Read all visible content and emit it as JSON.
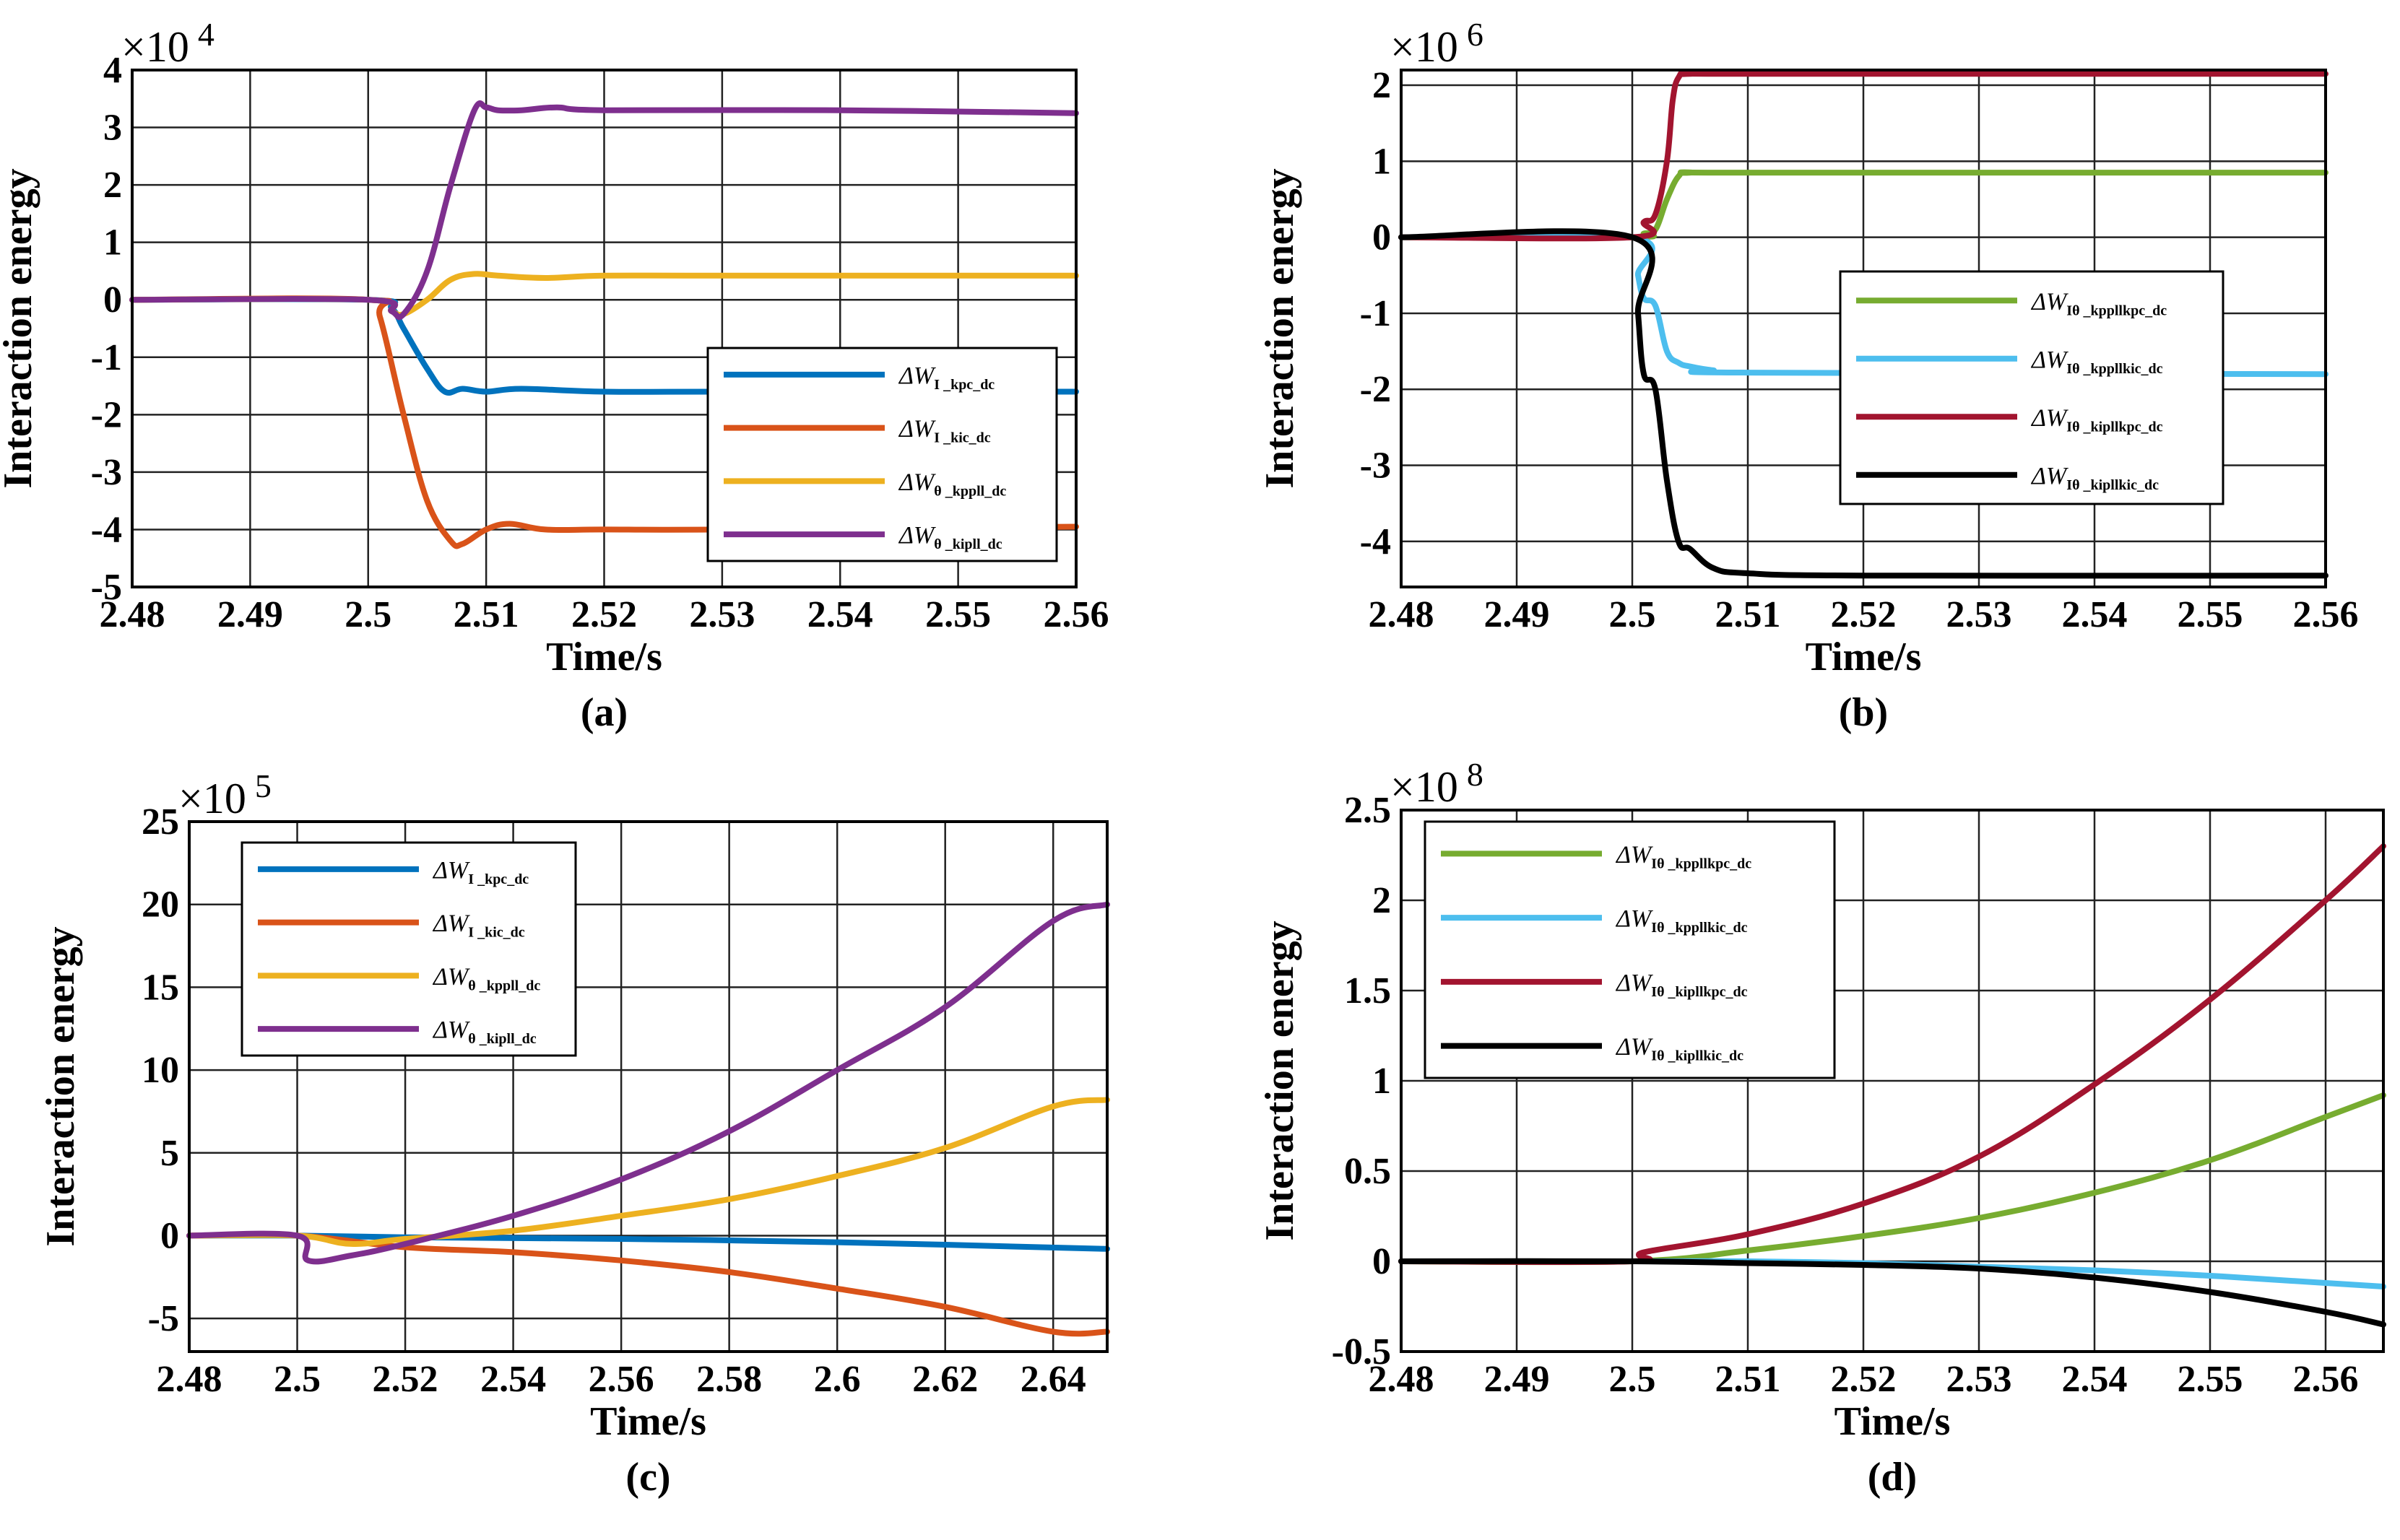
{
  "figure": {
    "y_axis_label": "Interaction energy",
    "x_axis_label": "Time/s"
  },
  "colors": {
    "blue": "#0072BD",
    "orange": "#D95319",
    "yellow": "#EDB120",
    "purple": "#7E2F8E",
    "green": "#77AC30",
    "lightblue": "#4DBEEE",
    "darkred": "#A2142F",
    "black": "#000000"
  },
  "chart_data": [
    {
      "id": "a",
      "type": "line",
      "caption": "(a)",
      "xlabel": "Time/s",
      "ylabel": "Interaction energy",
      "exponent_label": "×10",
      "exponent": "4",
      "xlim": [
        2.48,
        2.56
      ],
      "ylim": [
        -5,
        4
      ],
      "xticks": [
        2.48,
        2.49,
        2.5,
        2.51,
        2.52,
        2.53,
        2.54,
        2.55,
        2.56
      ],
      "xtick_labels": [
        "2.48",
        "2.49",
        "2.5",
        "2.51",
        "2.52",
        "2.53",
        "2.54",
        "2.55",
        "2.56"
      ],
      "yticks": [
        -5,
        -4,
        -3,
        -2,
        -1,
        0,
        1,
        2,
        3,
        4
      ],
      "ytick_labels": [
        "-5",
        "-4",
        "-3",
        "-2",
        "-1",
        "0",
        "1",
        "2",
        "3",
        "4"
      ],
      "grid": true,
      "legend_position": "lower-right",
      "series": [
        {
          "symbol": "ΔW",
          "subscript": "I _kpc_dc",
          "color": "blue",
          "x": [
            2.48,
            2.5,
            2.502,
            2.503,
            2.505,
            2.5065,
            2.508,
            2.51,
            2.513,
            2.52,
            2.53,
            2.56
          ],
          "y": [
            0,
            0,
            -0.15,
            -0.5,
            -1.2,
            -1.6,
            -1.55,
            -1.6,
            -1.55,
            -1.6,
            -1.6,
            -1.6
          ]
        },
        {
          "symbol": "ΔW",
          "subscript": "I _kic_dc",
          "color": "orange",
          "x": [
            2.48,
            2.5,
            2.501,
            2.503,
            2.505,
            2.507,
            2.508,
            2.51,
            2.512,
            2.515,
            2.52,
            2.53,
            2.56
          ],
          "y": [
            0,
            0,
            -0.3,
            -2.0,
            -3.5,
            -4.2,
            -4.25,
            -4.0,
            -3.9,
            -4.0,
            -4.0,
            -4.0,
            -3.95
          ]
        },
        {
          "symbol": "ΔW",
          "subscript": "θ _kppll_dc",
          "color": "yellow",
          "x": [
            2.48,
            2.5,
            2.502,
            2.503,
            2.505,
            2.507,
            2.509,
            2.511,
            2.515,
            2.52,
            2.53,
            2.56
          ],
          "y": [
            0,
            0,
            -0.2,
            -0.25,
            0.0,
            0.35,
            0.45,
            0.42,
            0.38,
            0.42,
            0.42,
            0.42
          ]
        },
        {
          "symbol": "ΔW",
          "subscript": "θ _kipll_dc",
          "color": "purple",
          "x": [
            2.48,
            2.5,
            2.502,
            2.503,
            2.505,
            2.507,
            2.509,
            2.51,
            2.511,
            2.513,
            2.516,
            2.52,
            2.54,
            2.56
          ],
          "y": [
            0,
            0,
            -0.2,
            -0.25,
            0.5,
            2.0,
            3.3,
            3.35,
            3.3,
            3.3,
            3.35,
            3.3,
            3.3,
            3.25
          ]
        }
      ]
    },
    {
      "id": "b",
      "type": "line",
      "caption": "(b)",
      "xlabel": "Time/s",
      "ylabel": "Interaction energy",
      "exponent_label": "×10",
      "exponent": "6",
      "xlim": [
        2.48,
        2.56
      ],
      "ylim": [
        -4.6,
        2.2
      ],
      "xticks": [
        2.48,
        2.49,
        2.5,
        2.51,
        2.52,
        2.53,
        2.54,
        2.55,
        2.56
      ],
      "xtick_labels": [
        "2.48",
        "2.49",
        "2.5",
        "2.51",
        "2.52",
        "2.53",
        "2.54",
        "2.55",
        "2.56"
      ],
      "yticks": [
        -4,
        -3,
        -2,
        -1,
        0,
        1,
        2
      ],
      "ytick_labels": [
        "-4",
        "-3",
        "-2",
        "-1",
        "0",
        "1",
        "2"
      ],
      "grid": true,
      "legend_position": "right",
      "series": [
        {
          "symbol": "ΔW",
          "subscript": "Iθ _kppllkpc_dc",
          "color": "green",
          "x": [
            2.48,
            2.5,
            2.501,
            2.502,
            2.503,
            2.504,
            2.505,
            2.51,
            2.56
          ],
          "y": [
            0,
            0,
            0.05,
            0.1,
            0.5,
            0.8,
            0.85,
            0.85,
            0.85
          ]
        },
        {
          "symbol": "ΔW",
          "subscript": "Iθ _kppllkic_dc",
          "color": "lightblue",
          "x": [
            2.48,
            2.5,
            2.5005,
            2.501,
            2.502,
            2.503,
            2.504,
            2.505,
            2.507,
            2.51,
            2.56
          ],
          "y": [
            0,
            0,
            -0.5,
            -0.8,
            -0.9,
            -1.5,
            -1.65,
            -1.7,
            -1.75,
            -1.78,
            -1.8
          ]
        },
        {
          "symbol": "ΔW",
          "subscript": "Iθ _kipllkpc_dc",
          "color": "darkred",
          "x": [
            2.48,
            2.5,
            2.501,
            2.502,
            2.503,
            2.5035,
            2.504,
            2.505,
            2.51,
            2.56
          ],
          "y": [
            0,
            0,
            0.2,
            0.3,
            1.0,
            1.8,
            2.1,
            2.15,
            2.15,
            2.15
          ]
        },
        {
          "symbol": "ΔW",
          "subscript": "Iθ _kipllkic_dc",
          "color": "black",
          "x": [
            2.48,
            2.5,
            2.5005,
            2.501,
            2.502,
            2.503,
            2.504,
            2.505,
            2.507,
            2.51,
            2.52,
            2.56
          ],
          "y": [
            0,
            0,
            -1.0,
            -1.8,
            -2.0,
            -3.2,
            -4.0,
            -4.1,
            -4.35,
            -4.42,
            -4.45,
            -4.45
          ]
        }
      ]
    },
    {
      "id": "c",
      "type": "line",
      "caption": "(c)",
      "xlabel": "Time/s",
      "ylabel": "Interaction energy",
      "exponent_label": "×10",
      "exponent": "5",
      "xlim": [
        2.48,
        2.65
      ],
      "ylim": [
        -7,
        25
      ],
      "xticks": [
        2.48,
        2.5,
        2.52,
        2.54,
        2.56,
        2.58,
        2.6,
        2.62,
        2.64
      ],
      "xtick_labels": [
        "2.48",
        "2.5",
        "2.52",
        "2.54",
        "2.56",
        "2.58",
        "2.6",
        "2.62",
        "2.64"
      ],
      "yticks": [
        -5,
        0,
        5,
        10,
        15,
        20,
        25
      ],
      "ytick_labels": [
        "-5",
        "0",
        "5",
        "10",
        "15",
        "20",
        "25"
      ],
      "grid": true,
      "legend_position": "top-left",
      "series": [
        {
          "symbol": "ΔW",
          "subscript": "I _kpc_dc",
          "color": "blue",
          "x": [
            2.48,
            2.5,
            2.52,
            2.56,
            2.6,
            2.65
          ],
          "y": [
            0,
            0,
            -0.1,
            -0.2,
            -0.4,
            -0.8
          ]
        },
        {
          "symbol": "ΔW",
          "subscript": "I _kic_dc",
          "color": "orange",
          "x": [
            2.48,
            2.5,
            2.52,
            2.54,
            2.56,
            2.58,
            2.6,
            2.62,
            2.64,
            2.65
          ],
          "y": [
            0,
            0,
            -0.7,
            -1.0,
            -1.5,
            -2.2,
            -3.2,
            -4.3,
            -5.8,
            -5.8
          ]
        },
        {
          "symbol": "ΔW",
          "subscript": "θ _kppll_dc",
          "color": "yellow",
          "x": [
            2.48,
            2.5,
            2.51,
            2.52,
            2.54,
            2.56,
            2.58,
            2.6,
            2.62,
            2.64,
            2.65
          ],
          "y": [
            0,
            0,
            -0.5,
            -0.2,
            0.3,
            1.2,
            2.2,
            3.6,
            5.3,
            7.8,
            8.2
          ]
        },
        {
          "symbol": "ΔW",
          "subscript": "θ _kipll_dc",
          "color": "purple",
          "x": [
            2.48,
            2.5,
            2.502,
            2.51,
            2.52,
            2.54,
            2.56,
            2.58,
            2.6,
            2.62,
            2.64,
            2.65
          ],
          "y": [
            0,
            0,
            -1.5,
            -1.2,
            -0.5,
            1.2,
            3.4,
            6.3,
            10.0,
            13.8,
            19.0,
            20.0
          ]
        }
      ]
    },
    {
      "id": "d",
      "type": "line",
      "caption": "(d)",
      "xlabel": "Time/s",
      "ylabel": "Interaction energy",
      "exponent_label": "×10",
      "exponent": "8",
      "xlim": [
        2.48,
        2.565
      ],
      "ylim": [
        -0.5,
        2.5
      ],
      "xticks": [
        2.48,
        2.49,
        2.5,
        2.51,
        2.52,
        2.53,
        2.54,
        2.55,
        2.56
      ],
      "xtick_labels": [
        "2.48",
        "2.49",
        "2.5",
        "2.51",
        "2.52",
        "2.53",
        "2.54",
        "2.55",
        "2.56"
      ],
      "yticks": [
        -0.5,
        0,
        0.5,
        1,
        1.5,
        2,
        2.5
      ],
      "ytick_labels": [
        "-0.5",
        "0",
        "0.5",
        "1",
        "1.5",
        "2",
        "2.5"
      ],
      "grid": true,
      "legend_position": "top-left",
      "series": [
        {
          "symbol": "ΔW",
          "subscript": "Iθ _kppllkpc_dc",
          "color": "green",
          "x": [
            2.48,
            2.5,
            2.51,
            2.52,
            2.53,
            2.54,
            2.55,
            2.56,
            2.565
          ],
          "y": [
            0,
            0,
            0.06,
            0.14,
            0.24,
            0.38,
            0.56,
            0.8,
            0.92
          ]
        },
        {
          "symbol": "ΔW",
          "subscript": "Iθ _kppllkic_dc",
          "color": "lightblue",
          "x": [
            2.48,
            2.5,
            2.51,
            2.52,
            2.53,
            2.54,
            2.55,
            2.56,
            2.565
          ],
          "y": [
            0,
            0,
            0,
            -0.01,
            -0.03,
            -0.05,
            -0.08,
            -0.12,
            -0.14
          ]
        },
        {
          "symbol": "ΔW",
          "subscript": "Iθ _kipllkpc_dc",
          "color": "darkred",
          "x": [
            2.48,
            2.5,
            2.501,
            2.51,
            2.52,
            2.53,
            2.54,
            2.55,
            2.56,
            2.565
          ],
          "y": [
            0,
            0,
            0.05,
            0.15,
            0.32,
            0.58,
            0.98,
            1.45,
            2.0,
            2.3
          ]
        },
        {
          "symbol": "ΔW",
          "subscript": "Iθ _kipllkic_dc",
          "color": "black",
          "x": [
            2.48,
            2.5,
            2.51,
            2.52,
            2.53,
            2.54,
            2.55,
            2.56,
            2.565
          ],
          "y": [
            0,
            0,
            -0.01,
            -0.02,
            -0.04,
            -0.09,
            -0.17,
            -0.28,
            -0.35
          ]
        }
      ]
    }
  ]
}
